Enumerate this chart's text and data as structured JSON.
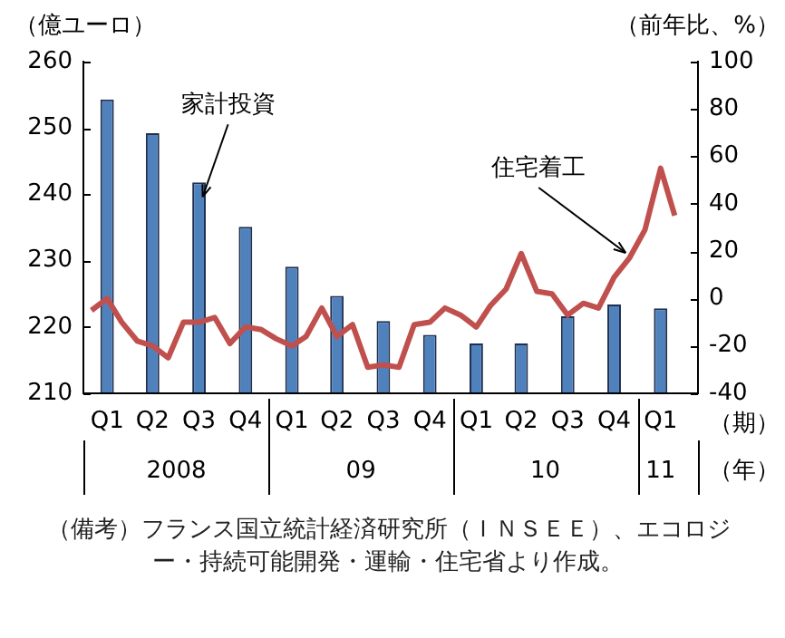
{
  "chart_data": {
    "type": "bar",
    "ylabel": "（億ユーロ）",
    "y2label": "（前年比、%）",
    "x": [
      "2008-02",
      "2008-05",
      "2008-08",
      "2008-11",
      "2009-02",
      "2009-05",
      "2009-08",
      "2009-11",
      "2010-02",
      "2010-05",
      "2010-08",
      "2010-11",
      "2011-02"
    ],
    "xlim": [
      "2007-12-16",
      "2011-04-16"
    ],
    "xticks": [
      {
        "value": "2008-02",
        "label": "Q1"
      },
      {
        "value": "2008-05",
        "label": "Q2"
      },
      {
        "value": "2008-08",
        "label": "Q3"
      },
      {
        "value": "2008-11",
        "label": "Q4"
      },
      {
        "value": "2009-02",
        "label": "Q1"
      },
      {
        "value": "2009-05",
        "label": "Q2"
      },
      {
        "value": "2009-08",
        "label": "Q3"
      },
      {
        "value": "2009-11",
        "label": "Q4"
      },
      {
        "value": "2010-02",
        "label": "Q1"
      },
      {
        "value": "2010-05",
        "label": "Q2"
      },
      {
        "value": "2010-08",
        "label": "Q3"
      },
      {
        "value": "2010-11",
        "label": "Q4"
      },
      {
        "value": "2011-02",
        "label": "Q1"
      }
    ],
    "series": [
      {
        "name": "家計投資",
        "color": "#4f81bd",
        "values": [
          254.3,
          249.2,
          241.8,
          235.1,
          229.1,
          224.7,
          220.9,
          218.8,
          217.5,
          217.5,
          221.6,
          223.4,
          222.8
        ]
      },
      {
        "name": "住宅着工",
        "type": "line",
        "axis": "y2",
        "color": "#c0504d",
        "x": [
          "2008-01",
          "2008-02",
          "2008-03",
          "2008-04",
          "2008-05",
          "2008-06",
          "2008-07",
          "2008-08",
          "2008-09",
          "2008-10",
          "2008-11",
          "2008-12",
          "2009-01",
          "2009-02",
          "2009-03",
          "2009-04",
          "2009-05",
          "2009-06",
          "2009-07",
          "2009-08",
          "2009-09",
          "2009-10",
          "2009-11",
          "2009-12",
          "2010-01",
          "2010-02",
          "2010-03",
          "2010-04",
          "2010-05",
          "2010-06",
          "2010-07",
          "2010-08",
          "2010-09",
          "2010-10",
          "2010-11",
          "2010-12",
          "2011-01",
          "2011-02",
          "2011-03"
        ],
        "values": [
          -5,
          0,
          -10,
          -18,
          -20,
          -25,
          -10,
          -10,
          -8,
          -19,
          -12,
          -13,
          -17,
          -20,
          -16,
          -4,
          -16,
          -11,
          -29,
          -28,
          -29,
          -11,
          -10,
          -4,
          -7,
          -12,
          -3,
          4,
          19,
          3,
          2,
          -7,
          -2,
          -4,
          9,
          17,
          29,
          55,
          35
        ]
      }
    ],
    "ylim": [
      210,
      260
    ],
    "yticks": [
      210,
      220,
      230,
      240,
      250,
      260
    ],
    "y2lim": [
      -40,
      100
    ],
    "y2ticks": [
      -40,
      -20,
      0,
      20,
      40,
      60,
      80,
      100
    ],
    "grid": false,
    "legend": false,
    "marker": "none",
    "line_style": "solid",
    "annotations": [
      "2008",
      "09",
      "10",
      "11",
      "（期）",
      "（年）",
      "（備考）フランス国立統計経済研究所（ＩＮＳＥＥ）、エコロジー・持続可能開発・運輸・住宅省より作成。"
    ]
  }
}
